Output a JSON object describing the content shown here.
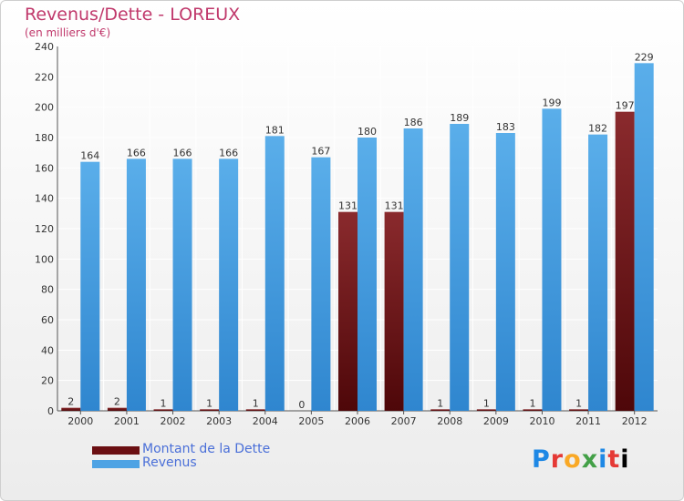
{
  "title": "Revenus/Dette - LOREUX",
  "subtitle": "(en milliers d'€)",
  "logo_text": "Proxiti",
  "chart_data": {
    "type": "bar",
    "categories": [
      "2000",
      "2001",
      "2002",
      "2003",
      "2004",
      "2005",
      "2006",
      "2007",
      "2008",
      "2009",
      "2010",
      "2011",
      "2012"
    ],
    "series": [
      {
        "name": "Montant de la Dette",
        "color": "#6b0f12",
        "values": [
          2,
          2,
          1,
          1,
          1,
          0,
          131,
          131,
          1,
          1,
          1,
          1,
          197
        ]
      },
      {
        "name": "Revenus",
        "color": "#4ea3e4",
        "values": [
          164,
          166,
          166,
          166,
          181,
          167,
          180,
          186,
          189,
          183,
          199,
          182,
          229
        ]
      }
    ],
    "yticks": [
      0,
      20,
      40,
      60,
      80,
      100,
      120,
      140,
      160,
      180,
      200,
      220,
      240
    ],
    "ylim": [
      0,
      240
    ],
    "grid": true,
    "legend_position": "bottom-left"
  }
}
